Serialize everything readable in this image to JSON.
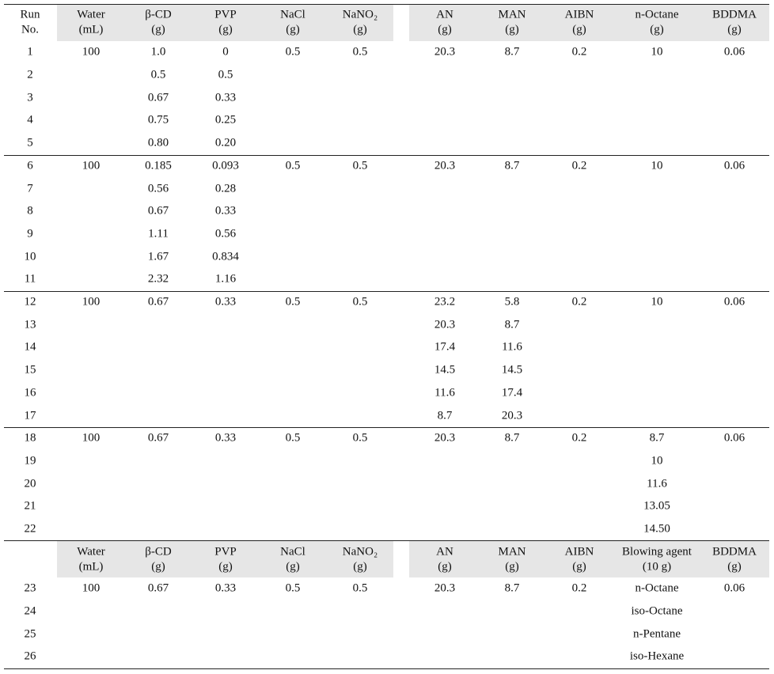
{
  "table": {
    "header": [
      [
        "Run",
        "No."
      ],
      [
        "Water",
        "(mL)"
      ],
      [
        "β-CD",
        "(g)"
      ],
      [
        "PVP",
        "(g)"
      ],
      [
        "NaCl",
        "(g)"
      ],
      [
        "NaNO₂",
        "(g)"
      ],
      [
        "AN",
        "(g)"
      ],
      [
        "MAN",
        "(g)"
      ],
      [
        "AIBN",
        "(g)"
      ],
      [
        "n-Octane",
        "(g)"
      ],
      [
        "BDDMA",
        "(g)"
      ]
    ],
    "groups": [
      [
        [
          "1",
          "100",
          "1.0",
          "0",
          "0.5",
          "0.5",
          "20.3",
          "8.7",
          "0.2",
          "10",
          "0.06"
        ],
        [
          "2",
          null,
          "0.5",
          "0.5",
          null,
          null,
          null,
          null,
          null,
          null,
          null
        ],
        [
          "3",
          null,
          "0.67",
          "0.33",
          null,
          null,
          null,
          null,
          null,
          null,
          null
        ],
        [
          "4",
          null,
          "0.75",
          "0.25",
          null,
          null,
          null,
          null,
          null,
          null,
          null
        ],
        [
          "5",
          null,
          "0.80",
          "0.20",
          null,
          null,
          null,
          null,
          null,
          null,
          null
        ]
      ],
      [
        [
          "6",
          "100",
          "0.185",
          "0.093",
          "0.5",
          "0.5",
          "20.3",
          "8.7",
          "0.2",
          "10",
          "0.06"
        ],
        [
          "7",
          null,
          "0.56",
          "0.28",
          null,
          null,
          null,
          null,
          null,
          null,
          null
        ],
        [
          "8",
          null,
          "0.67",
          "0.33",
          null,
          null,
          null,
          null,
          null,
          null,
          null
        ],
        [
          "9",
          null,
          "1.11",
          "0.56",
          null,
          null,
          null,
          null,
          null,
          null,
          null
        ],
        [
          "10",
          null,
          "1.67",
          "0.834",
          null,
          null,
          null,
          null,
          null,
          null,
          null
        ],
        [
          "11",
          null,
          "2.32",
          "1.16",
          null,
          null,
          null,
          null,
          null,
          null,
          null
        ]
      ],
      [
        [
          "12",
          "100",
          "0.67",
          "0.33",
          "0.5",
          "0.5",
          "23.2",
          "5.8",
          "0.2",
          "10",
          "0.06"
        ],
        [
          "13",
          null,
          null,
          null,
          null,
          null,
          "20.3",
          "8.7",
          null,
          null,
          null
        ],
        [
          "14",
          null,
          null,
          null,
          null,
          null,
          "17.4",
          "11.6",
          null,
          null,
          null
        ],
        [
          "15",
          null,
          null,
          null,
          null,
          null,
          "14.5",
          "14.5",
          null,
          null,
          null
        ],
        [
          "16",
          null,
          null,
          null,
          null,
          null,
          "11.6",
          "17.4",
          null,
          null,
          null
        ],
        [
          "17",
          null,
          null,
          null,
          null,
          null,
          "8.7",
          "20.3",
          null,
          null,
          null
        ]
      ],
      [
        [
          "18",
          "100",
          "0.67",
          "0.33",
          "0.5",
          "0.5",
          "20.3",
          "8.7",
          "0.2",
          "8.7",
          "0.06"
        ],
        [
          "19",
          null,
          null,
          null,
          null,
          null,
          null,
          null,
          null,
          "10",
          null
        ],
        [
          "20",
          null,
          null,
          null,
          null,
          null,
          null,
          null,
          null,
          "11.6",
          null
        ],
        [
          "21",
          null,
          null,
          null,
          null,
          null,
          null,
          null,
          null,
          "13.05",
          null
        ],
        [
          "22",
          null,
          null,
          null,
          null,
          null,
          null,
          null,
          null,
          "14.50",
          null
        ]
      ]
    ],
    "header2": [
      null,
      [
        "Water",
        "(mL)"
      ],
      [
        "β-CD",
        "(g)"
      ],
      [
        "PVP",
        "(g)"
      ],
      [
        "NaCl",
        "(g)"
      ],
      [
        "NaNO₂",
        "(g)"
      ],
      [
        "AN",
        "(g)"
      ],
      [
        "MAN",
        "(g)"
      ],
      [
        "AIBN",
        "(g)"
      ],
      [
        "Blowing agent",
        "(10 g)"
      ],
      [
        "BDDMA",
        "(g)"
      ]
    ],
    "rows2": [
      [
        "23",
        "100",
        "0.67",
        "0.33",
        "0.5",
        "0.5",
        "20.3",
        "8.7",
        "0.2",
        "n-Octane",
        "0.06"
      ],
      [
        "24",
        null,
        null,
        null,
        null,
        null,
        null,
        null,
        null,
        "iso-Octane",
        null
      ],
      [
        "25",
        null,
        null,
        null,
        null,
        null,
        null,
        null,
        null,
        "n-Pentane",
        null
      ],
      [
        "26",
        null,
        null,
        null,
        null,
        null,
        null,
        null,
        null,
        "iso-Hexane",
        null
      ]
    ]
  }
}
